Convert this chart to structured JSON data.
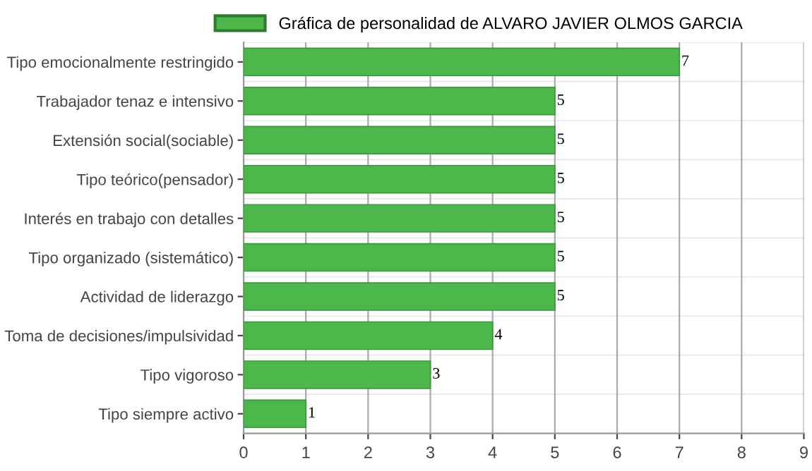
{
  "chart_data": {
    "type": "bar",
    "orientation": "horizontal",
    "categories": [
      "Tipo emocionalmente restringido",
      "Trabajador tenaz e intensivo",
      "Extensión social(sociable)",
      "Tipo teórico(pensador)",
      "Interés en trabajo con detalles",
      "Tipo organizado (sistemático)",
      "Actividad de liderazgo",
      "Toma de decisiones/impulsividad",
      "Tipo vigoroso",
      "Tipo siempre activo"
    ],
    "series": [
      {
        "name": "Gráfica de personalidad de ALVARO JAVIER OLMOS GARCIA",
        "color": "#4cb84c",
        "values": [
          7,
          5,
          5,
          5,
          5,
          5,
          5,
          4,
          3,
          1
        ]
      }
    ],
    "xlim": [
      0,
      9
    ],
    "xticks": [
      0,
      1,
      2,
      3,
      4,
      5,
      6,
      7,
      8,
      9
    ],
    "grid": true,
    "legend": "top",
    "data_labels": true
  }
}
